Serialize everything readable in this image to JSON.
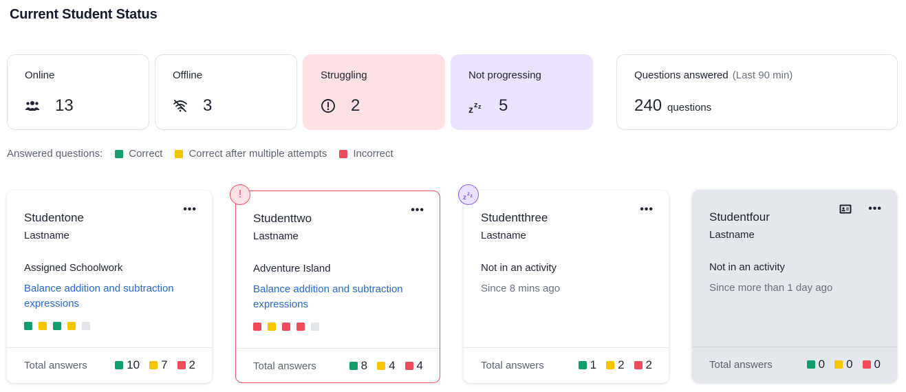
{
  "page_title": "Current Student Status",
  "stats": {
    "online": {
      "label": "Online",
      "value": "13"
    },
    "offline": {
      "label": "Offline",
      "value": "3"
    },
    "struggling": {
      "label": "Struggling",
      "value": "2"
    },
    "not_progressing": {
      "label": "Not progressing",
      "value": "5"
    },
    "questions": {
      "label": "Questions answered",
      "sub": "(Last 90 min)",
      "value": "240",
      "unit": "questions"
    }
  },
  "legend": {
    "prefix": "Answered questions:",
    "correct": "Correct",
    "multi": "Correct after multiple attempts",
    "incorrect": "Incorrect"
  },
  "colors": {
    "correct": "#129e6c",
    "multi": "#f7c400",
    "incorrect": "#ef4a5a",
    "pending": "#e1e4e8",
    "link": "#2567d6"
  },
  "students": [
    {
      "first": "Studentone",
      "last": "Lastname",
      "activity": "Assigned Schoolwork",
      "link": "Balance addition and subtraction expressions",
      "results": [
        "correct",
        "multi",
        "correct",
        "multi",
        "pending"
      ],
      "total_label": "Total answers",
      "correct": "10",
      "multi": "7",
      "incorrect": "2"
    },
    {
      "first": "Studenttwo",
      "last": "Lastname",
      "activity": "Adventure Island",
      "link": "Balance addition and subtraction expressions",
      "results": [
        "incorrect",
        "multi",
        "incorrect",
        "incorrect",
        "pending"
      ],
      "total_label": "Total answers",
      "correct": "8",
      "multi": "4",
      "incorrect": "4",
      "status": "struggling"
    },
    {
      "first": "Studentthree",
      "last": "Lastname",
      "activity": "Not in an activity",
      "since": "Since 8 mins ago",
      "total_label": "Total answers",
      "correct": "1",
      "multi": "2",
      "incorrect": "2",
      "status": "not-progressing"
    },
    {
      "first": "Studentfour",
      "last": "Lastname",
      "activity": "Not in an activity",
      "since": "Since more than 1 day ago",
      "total_label": "Total answers",
      "correct": "0",
      "multi": "0",
      "incorrect": "0",
      "status": "offline"
    }
  ],
  "icons": {
    "online": "people-icon",
    "offline": "wifi-off-icon",
    "struggling": "alert-circle-icon",
    "not_progressing": "zzz-icon",
    "more": "more-horizontal-icon",
    "id": "id-card-icon"
  }
}
